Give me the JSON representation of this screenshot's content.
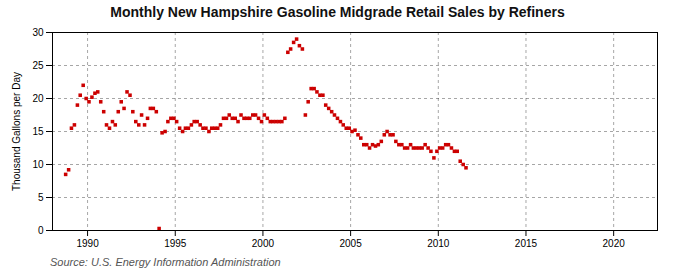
{
  "chart_data": {
    "type": "scatter",
    "title": "Monthly New Hampshire Gasoline Midgrade Retail Sales by Refiners",
    "ylabel": "Thousand Gallons per Day",
    "caption": "Source: U.S. Energy Information Administration",
    "color": "#cc0000",
    "marker": "square",
    "grid": true,
    "xlim": [
      1988.0,
      2022.5
    ],
    "ylim": [
      0,
      30
    ],
    "xticks": [
      1990,
      1995,
      2000,
      2005,
      2010,
      2015,
      2020
    ],
    "yticks": [
      0,
      5,
      10,
      15,
      20,
      25,
      30
    ],
    "x": [
      1988.75,
      1988.92,
      1989.08,
      1989.25,
      1989.42,
      1989.58,
      1989.75,
      1989.92,
      1990.08,
      1990.25,
      1990.42,
      1990.58,
      1990.75,
      1990.92,
      1991.08,
      1991.25,
      1991.42,
      1991.58,
      1991.75,
      1991.92,
      1992.08,
      1992.25,
      1992.42,
      1992.58,
      1992.75,
      1992.92,
      1993.08,
      1993.25,
      1993.42,
      1993.58,
      1993.75,
      1993.92,
      1994.08,
      1994.25,
      1994.42,
      1994.58,
      1994.75,
      1994.92,
      1995.08,
      1995.25,
      1995.42,
      1995.58,
      1995.75,
      1995.92,
      1996.08,
      1996.25,
      1996.42,
      1996.58,
      1996.75,
      1996.92,
      1997.08,
      1997.25,
      1997.42,
      1997.58,
      1997.75,
      1997.92,
      1998.08,
      1998.25,
      1998.42,
      1998.58,
      1998.75,
      1998.92,
      1999.08,
      1999.25,
      1999.42,
      1999.58,
      1999.75,
      1999.92,
      2000.08,
      2000.25,
      2000.42,
      2000.58,
      2000.75,
      2000.92,
      2001.08,
      2001.25,
      2001.42,
      2001.58,
      2001.75,
      2001.92,
      2002.08,
      2002.25,
      2002.42,
      2002.58,
      2002.75,
      2002.92,
      2003.08,
      2003.25,
      2003.42,
      2003.58,
      2003.75,
      2003.92,
      2004.08,
      2004.25,
      2004.42,
      2004.58,
      2004.75,
      2004.92,
      2005.08,
      2005.25,
      2005.42,
      2005.58,
      2005.75,
      2005.92,
      2006.08,
      2006.25,
      2006.42,
      2006.58,
      2006.75,
      2006.92,
      2007.08,
      2007.25,
      2007.42,
      2007.58,
      2007.75,
      2007.92,
      2008.08,
      2008.25,
      2008.42,
      2008.58,
      2008.75,
      2008.92,
      2009.08,
      2009.25,
      2009.42,
      2009.58,
      2009.75,
      2009.92,
      2010.08,
      2010.25,
      2010.42,
      2010.58,
      2010.75,
      2010.92,
      2011.08,
      2011.25,
      2011.42,
      2011.58
    ],
    "values": [
      8.5,
      9.2,
      15.5,
      16.0,
      19.0,
      20.5,
      22.0,
      20.0,
      19.5,
      20.2,
      20.8,
      21.0,
      19.5,
      18.0,
      16.0,
      15.5,
      16.5,
      16.0,
      18.0,
      19.5,
      18.5,
      21.0,
      20.5,
      18.0,
      16.5,
      16.0,
      17.5,
      16.0,
      17.0,
      18.5,
      18.5,
      18.0,
      0.3,
      14.8,
      15.0,
      16.5,
      17.0,
      17.0,
      16.5,
      15.5,
      15.0,
      15.5,
      15.5,
      16.0,
      16.5,
      16.5,
      16.0,
      15.5,
      15.5,
      15.0,
      15.5,
      15.5,
      15.5,
      16.0,
      17.0,
      17.0,
      17.5,
      17.0,
      17.0,
      16.5,
      17.5,
      17.0,
      17.0,
      17.0,
      17.5,
      17.5,
      17.0,
      16.5,
      17.5,
      17.0,
      16.5,
      16.5,
      16.5,
      16.5,
      16.5,
      17.0,
      27.0,
      27.5,
      28.5,
      29.0,
      28.0,
      27.5,
      17.5,
      19.5,
      21.5,
      21.5,
      21.0,
      20.5,
      20.5,
      19.0,
      18.5,
      18.0,
      17.5,
      17.0,
      16.5,
      16.0,
      15.5,
      15.5,
      15.0,
      15.2,
      14.5,
      14.0,
      13.0,
      13.0,
      12.5,
      13.0,
      12.8,
      13.0,
      13.5,
      14.5,
      15.0,
      14.5,
      14.5,
      13.5,
      13.0,
      13.0,
      12.5,
      12.5,
      13.0,
      12.5,
      12.5,
      12.5,
      12.5,
      13.0,
      12.5,
      12.0,
      11.0,
      12.0,
      12.5,
      12.5,
      13.0,
      13.0,
      12.5,
      12.0,
      12.0,
      10.5,
      10.0,
      9.5
    ]
  }
}
